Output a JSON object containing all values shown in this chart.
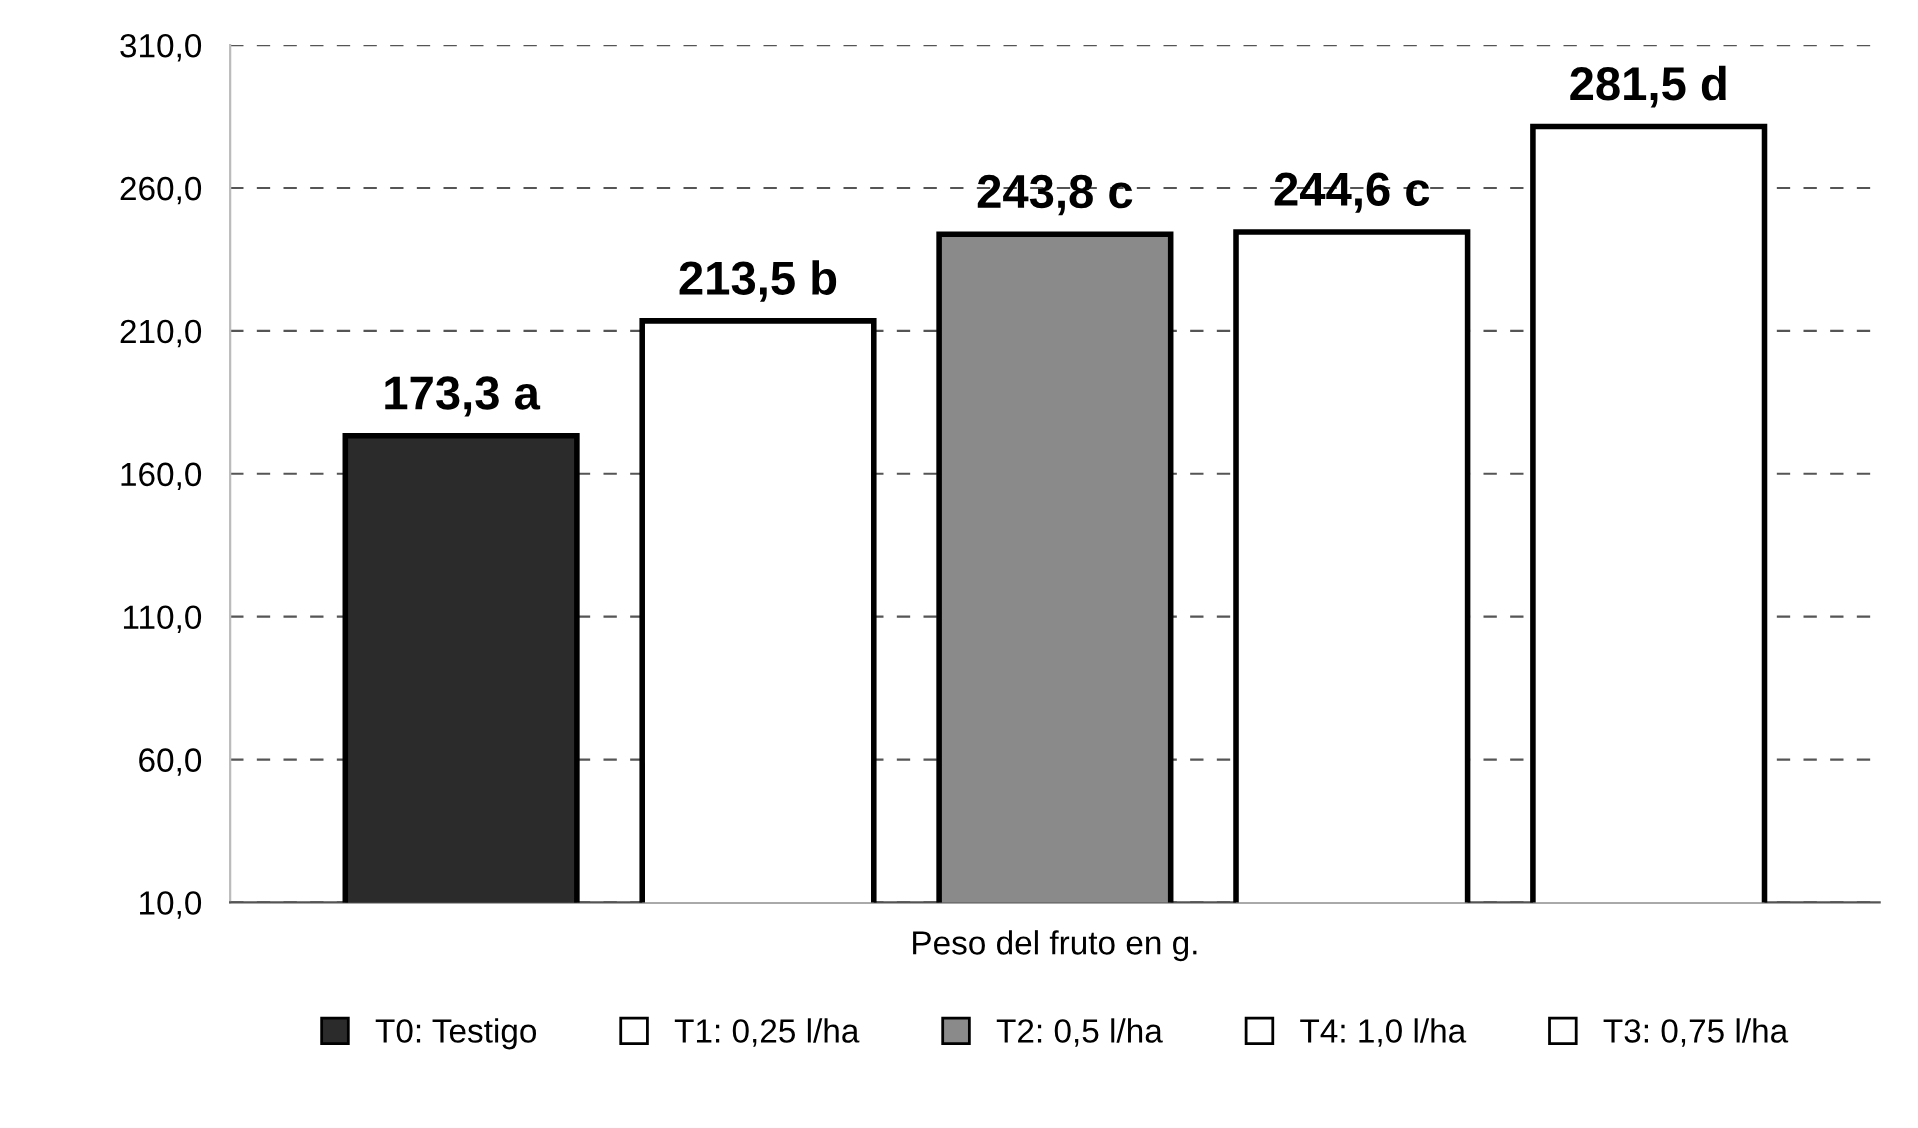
{
  "chart_data": {
    "type": "bar",
    "categories": [
      "Peso del fruto en g."
    ],
    "series": [
      {
        "name": "T0: Testigo",
        "color": "#2b2b2b",
        "values": [
          173.3
        ],
        "value_labels": [
          "173,3 a"
        ]
      },
      {
        "name": "T1: 0,25 l/ha",
        "color": "#ffffff",
        "values": [
          213.5
        ],
        "value_labels": [
          "213,5 b"
        ]
      },
      {
        "name": "T2: 0,5 l/ha",
        "color": "#8a8a8a",
        "values": [
          243.8
        ],
        "value_labels": [
          "243,8 c"
        ]
      },
      {
        "name": "T4: 1,0 l/ha",
        "color": "#ffffff",
        "values": [
          244.6
        ],
        "value_labels": [
          "244,6 c"
        ]
      },
      {
        "name": "T3: 0,75 l/ha",
        "color": "#ffffff",
        "values": [
          281.5
        ],
        "value_labels": [
          "281,5 d"
        ]
      }
    ],
    "ylim": [
      10,
      310
    ],
    "yticks": [
      {
        "value": 10,
        "label": "10,0"
      },
      {
        "value": 60,
        "label": "60,0"
      },
      {
        "value": 110,
        "label": "110,0"
      },
      {
        "value": 160,
        "label": "160,0"
      },
      {
        "value": 210,
        "label": "210,0"
      },
      {
        "value": 260,
        "label": "260,0"
      },
      {
        "value": 310,
        "label": "310,0"
      }
    ],
    "grid": "y",
    "legend": "bottom"
  }
}
